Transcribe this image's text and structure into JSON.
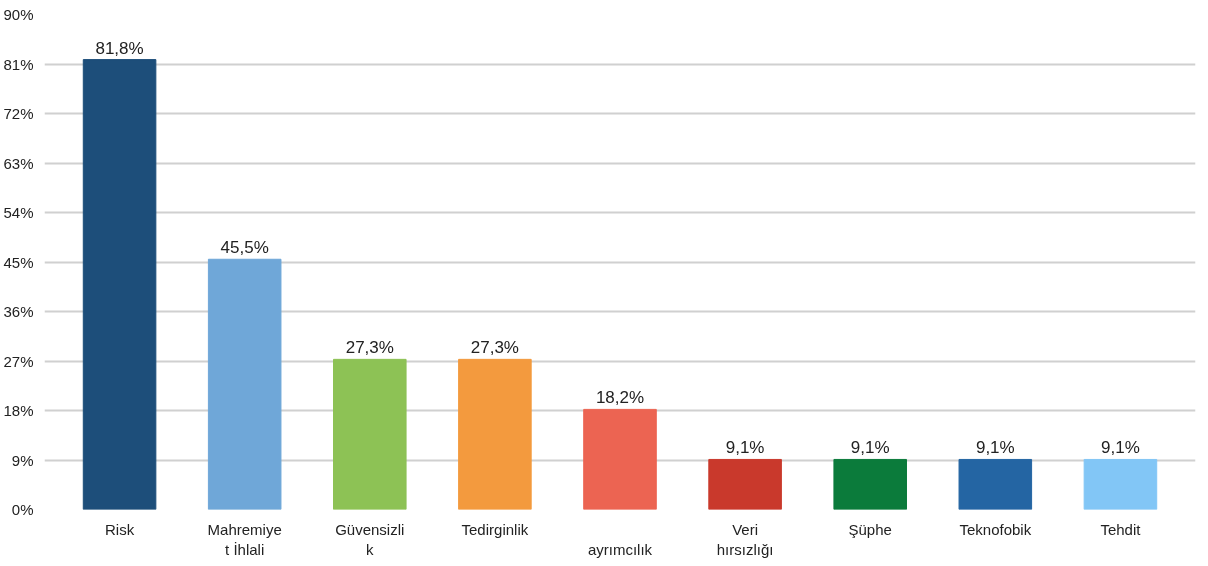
{
  "chart_data": {
    "type": "bar",
    "categories": [
      "Risk",
      "Mahremiye\nt İhlali",
      "Güvensizli\nk",
      "Tedirginlik",
      "\nayrımcılık",
      "Veri\nhırsızlığı",
      "Şüphe",
      "Teknofobik",
      "Tehdit"
    ],
    "values": [
      81.8,
      45.5,
      27.3,
      27.3,
      18.2,
      9.1,
      9.1,
      9.1,
      9.1
    ],
    "colors": [
      "#1d4e7a",
      "#6fa7d8",
      "#8dc255",
      "#f39a3e",
      "#ec6452",
      "#c9392c",
      "#0b7b3b",
      "#2465a3",
      "#82c6f6"
    ],
    "value_labels": [
      "81,8%",
      "45,5%",
      "27,3%",
      "27,3%",
      "18,2%",
      "9,1%",
      "9,1%",
      "9,1%",
      "9,1%"
    ],
    "ylim": [
      0,
      90
    ],
    "yticks": [
      {
        "value": 0,
        "label": "0%"
      },
      {
        "value": 9,
        "label": "9%"
      },
      {
        "value": 18,
        "label": "18%"
      },
      {
        "value": 27,
        "label": "27%"
      },
      {
        "value": 36,
        "label": "36%"
      },
      {
        "value": 45,
        "label": "45%"
      },
      {
        "value": 54,
        "label": "54%"
      },
      {
        "value": 63,
        "label": "63%"
      },
      {
        "value": 72,
        "label": "72%"
      },
      {
        "value": 81,
        "label": "81%"
      },
      {
        "value": 90,
        "label": "90%"
      }
    ],
    "grid": "y"
  }
}
